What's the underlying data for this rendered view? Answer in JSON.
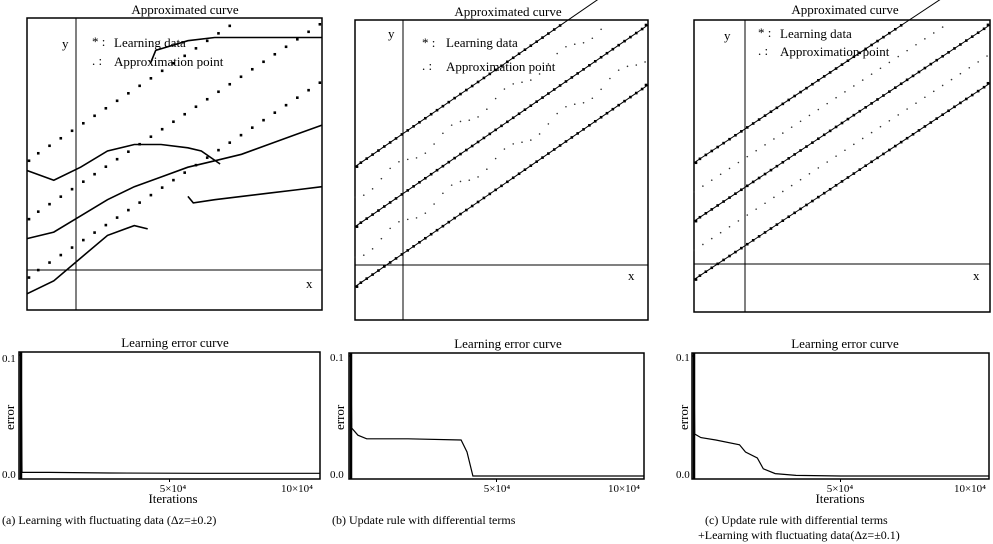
{
  "chart_data": [
    {
      "id": "a",
      "type": "scatter",
      "title": "Approximated curve",
      "xlabel": "x",
      "ylabel": "y",
      "legend": [
        "Learning data",
        "Approximation point"
      ],
      "legend_markers": [
        "* :",
        ". :"
      ],
      "learning_lines": [
        {
          "name": "",
          "intercept": 0.0,
          "slope": 0.55
        },
        {
          "name": "",
          "intercept": 1.8,
          "slope": 0.55
        },
        {
          "name": "",
          "intercept": 3.6,
          "slope": 0.55
        }
      ],
      "xlim": [
        -1,
        10
      ],
      "ylim": [
        -1,
        8
      ],
      "approx_curves": [
        [
          [
            -1,
            3.3
          ],
          [
            0,
            3.0
          ],
          [
            1,
            3.4
          ],
          [
            2,
            3.9
          ],
          [
            3,
            4.1
          ],
          [
            4,
            4.1
          ],
          [
            5,
            4.0
          ],
          [
            5.5,
            3.9
          ],
          [
            6.2,
            3.5
          ]
        ],
        [
          [
            -1,
            1.2
          ],
          [
            0,
            1.4
          ],
          [
            1,
            1.9
          ],
          [
            2,
            2.4
          ],
          [
            3,
            2.8
          ],
          [
            4,
            3.1
          ],
          [
            5,
            3.4
          ],
          [
            6,
            3.6
          ],
          [
            7,
            3.8
          ],
          [
            8,
            4.1
          ],
          [
            9,
            4.4
          ],
          [
            10,
            4.7
          ]
        ],
        [
          [
            -1,
            -0.5
          ],
          [
            0,
            -0.1
          ],
          [
            1,
            0.6
          ],
          [
            2,
            1.3
          ],
          [
            3,
            1.6
          ],
          [
            3.5,
            1.5
          ]
        ],
        [
          [
            5,
            2.5
          ],
          [
            5.2,
            2.3
          ],
          [
            6,
            2.4
          ],
          [
            7,
            2.5
          ],
          [
            8,
            2.6
          ],
          [
            9,
            2.7
          ],
          [
            10,
            2.8
          ]
        ],
        [
          [
            3.6,
            6.6
          ],
          [
            3.8,
            7.0
          ],
          [
            5,
            7.3
          ],
          [
            6,
            7.4
          ],
          [
            7,
            7.4
          ],
          [
            10,
            7.4
          ]
        ]
      ],
      "caption": "(a) Learning with fluctuating data (Δz=±0.2)",
      "error": {
        "title": "Learning error curve",
        "xlabel": "Iterations",
        "ylabel": "error",
        "x_ticks": [
          "5×10⁴",
          "10×10⁴"
        ],
        "y_ticks": [
          "0.1",
          "0.0"
        ],
        "xlim": [
          0,
          100000
        ],
        "ylim": [
          0,
          0.1
        ],
        "points": [
          [
            0,
            0.1
          ],
          [
            700,
            0.1
          ],
          [
            1000,
            0.003
          ],
          [
            10000,
            0.003
          ],
          [
            30000,
            0.0025
          ],
          [
            60000,
            0.0022
          ],
          [
            100000,
            0.0022
          ]
        ]
      }
    },
    {
      "id": "b",
      "type": "scatter",
      "title": "Approximated curve",
      "xlabel": "x",
      "ylabel": "y",
      "legend": [
        "Learning data",
        "Approximation point"
      ],
      "legend_markers": [
        "* :",
        ". :"
      ],
      "learning_lines": [
        {
          "name": "",
          "intercept": 0.0,
          "slope": 0.55
        },
        {
          "name": "",
          "intercept": 1.8,
          "slope": 0.55
        },
        {
          "name": "",
          "intercept": 3.6,
          "slope": 0.55
        }
      ],
      "xlim": [
        -1,
        10
      ],
      "ylim": [
        -1,
        8
      ],
      "caption": "(b) Update rule with differential terms",
      "error": {
        "title": "Learning error curve",
        "xlabel": "Iterations",
        "ylabel": "error",
        "x_ticks": [
          "5×10⁴",
          "10×10⁴"
        ],
        "y_ticks": [
          "0.1",
          "0.0"
        ],
        "xlim": [
          0,
          100000
        ],
        "ylim": [
          0,
          0.1
        ],
        "points": [
          [
            0,
            0.1
          ],
          [
            600,
            0.1
          ],
          [
            900,
            0.04
          ],
          [
            3000,
            0.034
          ],
          [
            6000,
            0.031
          ],
          [
            20000,
            0.031
          ],
          [
            38000,
            0.03
          ],
          [
            40000,
            0.02
          ],
          [
            42000,
            0.0
          ],
          [
            100000,
            0.0
          ]
        ]
      }
    },
    {
      "id": "c",
      "type": "scatter",
      "title": "Approximated curve",
      "xlabel": "x",
      "ylabel": "y",
      "legend": [
        "Learning data",
        "Approximation point"
      ],
      "legend_markers": [
        "* :",
        ". :"
      ],
      "learning_lines": [
        {
          "name": "",
          "intercept": 0.0,
          "slope": 0.55
        },
        {
          "name": "",
          "intercept": 1.8,
          "slope": 0.55
        },
        {
          "name": "",
          "intercept": 3.6,
          "slope": 0.55
        }
      ],
      "xlim": [
        -1,
        10
      ],
      "ylim": [
        -1,
        8
      ],
      "caption_line1": "(c)    Update rule with differential terms",
      "caption_line2": "+Learning with fluctuating data(Δz=±0.1)",
      "error": {
        "title": "Learning error curve",
        "xlabel": "Iterations",
        "ylabel": "error",
        "x_ticks": [
          "5×10⁴",
          "10×10⁴"
        ],
        "y_ticks": [
          "0.1",
          "0.0"
        ],
        "xlim": [
          0,
          100000
        ],
        "ylim": [
          0,
          0.1
        ],
        "points": [
          [
            0,
            0.1
          ],
          [
            600,
            0.1
          ],
          [
            900,
            0.035
          ],
          [
            3000,
            0.032
          ],
          [
            8000,
            0.03
          ],
          [
            16000,
            0.026
          ],
          [
            18000,
            0.02
          ],
          [
            22000,
            0.015
          ],
          [
            24000,
            0.006
          ],
          [
            28000,
            0.002
          ],
          [
            35000,
            0.0005
          ],
          [
            50000,
            0.0
          ],
          [
            100000,
            0.0
          ]
        ]
      }
    }
  ]
}
